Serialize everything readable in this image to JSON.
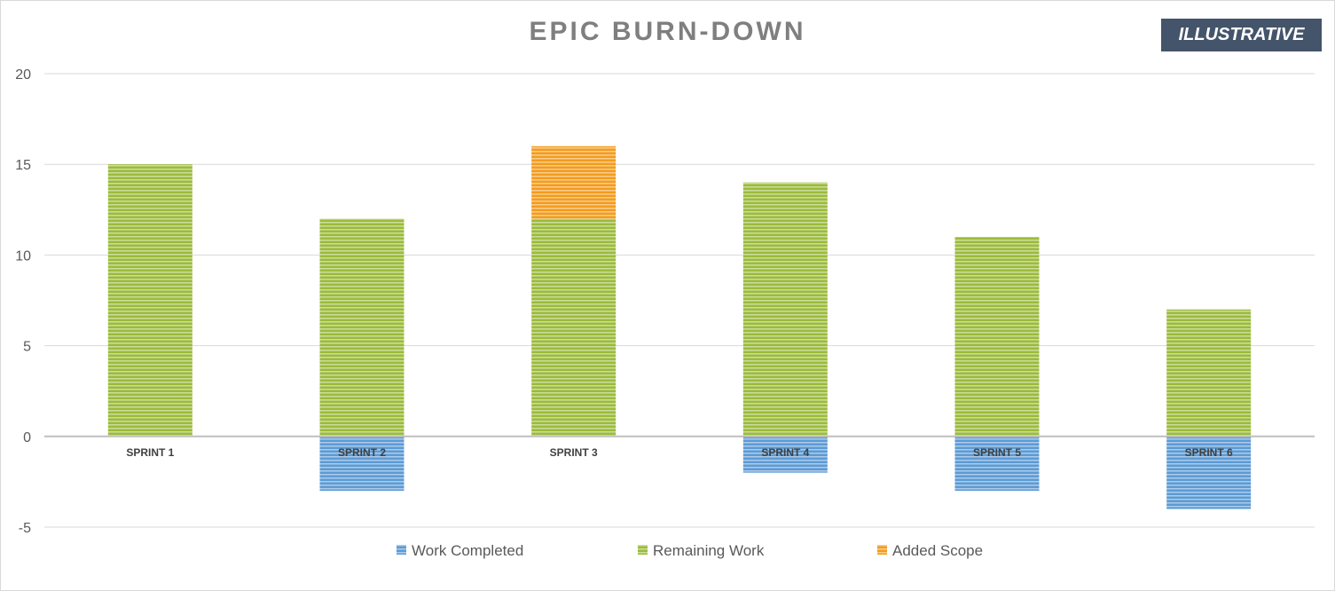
{
  "chart_data": {
    "type": "bar",
    "stacked": true,
    "title": "EPIC BURN-DOWN",
    "badge": "ILLUSTRATIVE",
    "categories": [
      "SPRINT 1",
      "SPRINT 2",
      "SPRINT 3",
      "SPRINT 4",
      "SPRINT 5",
      "SPRINT 6"
    ],
    "series": [
      {
        "name": "Work Completed",
        "color": "#5b9bd5",
        "values": [
          0,
          -3,
          0,
          -2,
          -3,
          -4
        ]
      },
      {
        "name": "Remaining Work",
        "color": "#9bbb3b",
        "values": [
          15,
          12,
          12,
          14,
          11,
          7
        ]
      },
      {
        "name": "Added Scope",
        "color": "#f39c1d",
        "values": [
          0,
          0,
          4,
          0,
          0,
          0
        ]
      }
    ],
    "ylim": [
      -5,
      20
    ],
    "yticks": [
      20,
      15,
      10,
      5,
      0,
      -5
    ],
    "grid": true,
    "legend_position": "bottom",
    "xlabel": "",
    "ylabel": ""
  }
}
